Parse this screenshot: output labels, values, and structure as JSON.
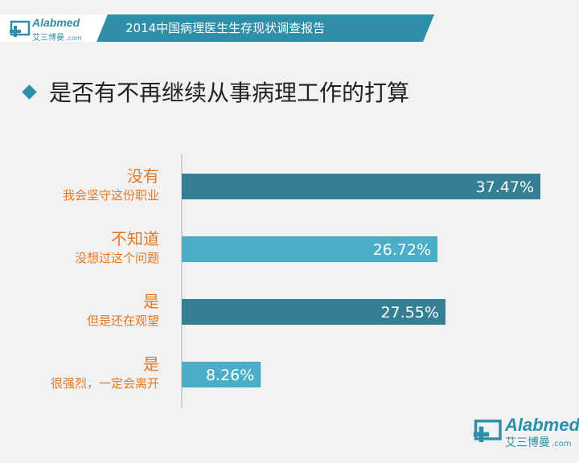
{
  "header": {
    "title": "2014中国病理医生生存现状调查报告",
    "brand_main": "Alabmed",
    "brand_sub": "艾三博曼",
    "brand_dotcom": ".com",
    "band_color": "#2f8fa8"
  },
  "question": {
    "text": "是否有不再继续从事病理工作的打算",
    "marker_icon": "diamond-icon"
  },
  "footer_logo": {
    "brand_main": "Alabmed",
    "brand_sub": "艾三博曼",
    "brand_dotcom": ".com"
  },
  "chart_data": {
    "type": "bar",
    "orientation": "horizontal",
    "categories": [
      {
        "main": "没有",
        "sub": "我会坚守这份职业"
      },
      {
        "main": "不知道",
        "sub": "没想过这个问题"
      },
      {
        "main": "是",
        "sub": "但是还在观望"
      },
      {
        "main": "是",
        "sub": "很强烈，一定会离开"
      }
    ],
    "values": [
      37.47,
      26.72,
      27.55,
      8.26
    ],
    "value_labels": [
      "37.47%",
      "26.72%",
      "27.55%",
      "8.26%"
    ],
    "bar_colors": [
      "#357f95",
      "#4aaec8",
      "#357f95",
      "#4aaec8"
    ],
    "label_color": "#e87722",
    "xlim": [
      0,
      40
    ],
    "grid": false,
    "legend": "none"
  }
}
